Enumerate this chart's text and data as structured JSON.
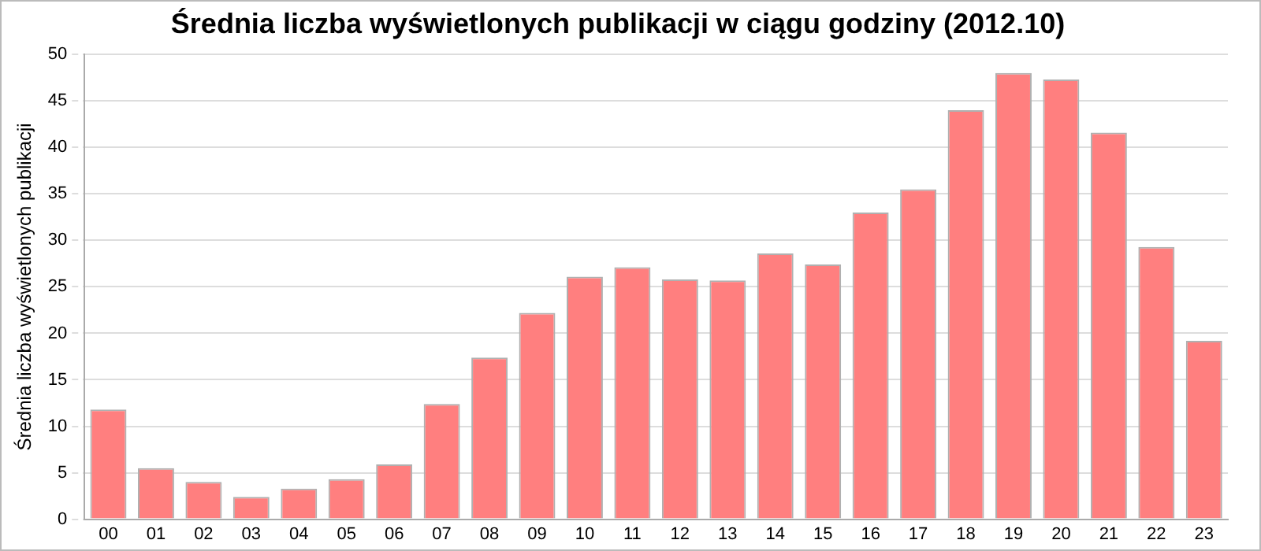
{
  "chart_data": {
    "type": "bar",
    "title": "Średnia liczba wyświetlonych publikacji w ciągu godziny (2012.10)",
    "ylabel": "Średnia liczba wyświetlonych publikacji",
    "categories": [
      "00",
      "01",
      "02",
      "03",
      "04",
      "05",
      "06",
      "07",
      "08",
      "09",
      "10",
      "11",
      "12",
      "13",
      "14",
      "15",
      "16",
      "17",
      "18",
      "19",
      "20",
      "21",
      "22",
      "23"
    ],
    "values": [
      11.8,
      5.5,
      4.0,
      2.4,
      3.3,
      4.3,
      5.9,
      12.4,
      17.4,
      22.2,
      26.1,
      27.1,
      25.8,
      25.7,
      28.6,
      27.4,
      33.0,
      35.5,
      44.0,
      48.0,
      47.3,
      41.6,
      29.3,
      19.2
    ],
    "color": "#ff7f7f",
    "ylim": [
      0,
      50
    ],
    "yticks": [
      0,
      5,
      10,
      15,
      20,
      25,
      30,
      35,
      40,
      45,
      50
    ],
    "grid": "y",
    "legend": false
  }
}
